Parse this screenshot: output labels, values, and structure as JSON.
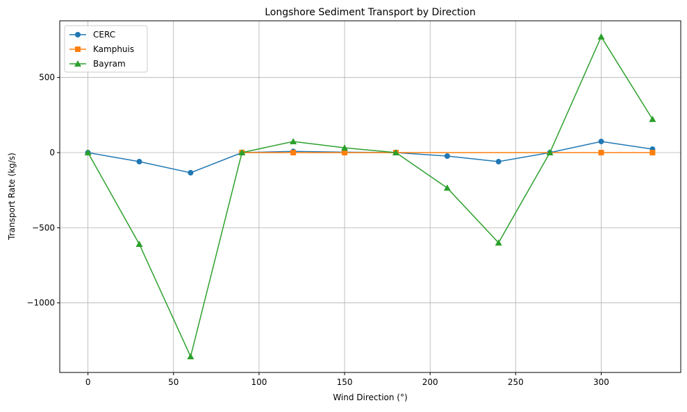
{
  "chart_data": {
    "type": "line",
    "title": "Longshore Sediment Transport by Direction",
    "xlabel": "Wind Direction (°)",
    "ylabel": "Transport Rate (kg/s)",
    "xlim": [
      -16.5,
      346.5
    ],
    "ylim": [
      -1463,
      877
    ],
    "xticks": [
      0,
      50,
      100,
      150,
      200,
      250,
      300
    ],
    "yticks": [
      -1000,
      -500,
      0,
      500
    ],
    "ytick_labels": [
      "−1000",
      "−500",
      "0",
      "500"
    ],
    "grid": true,
    "legend_position": "top-left",
    "x": [
      0,
      30,
      60,
      90,
      120,
      150,
      180,
      210,
      240,
      270,
      300,
      330
    ],
    "series": [
      {
        "name": "CERC",
        "color": "#1f77b4",
        "marker": "circle",
        "x": [
          0,
          30,
          60,
          90,
          120,
          150,
          180,
          210,
          240,
          270,
          300,
          330
        ],
        "values": [
          0,
          -60,
          -134,
          0,
          8,
          3,
          0,
          -23,
          -60,
          0,
          74,
          23
        ]
      },
      {
        "name": "Kamphuis",
        "color": "#ff7f0e",
        "marker": "square",
        "x": [
          90,
          120,
          150,
          180,
          300,
          330
        ],
        "values": [
          0,
          0,
          0,
          0,
          0,
          0
        ]
      },
      {
        "name": "Bayram",
        "color": "#2ca02c",
        "marker": "triangle",
        "x": [
          0,
          30,
          60,
          90,
          120,
          150,
          180,
          210,
          240,
          270,
          300,
          330
        ],
        "values": [
          0,
          -609,
          -1357,
          0,
          74,
          32,
          0,
          -235,
          -600,
          0,
          771,
          222
        ]
      }
    ]
  }
}
